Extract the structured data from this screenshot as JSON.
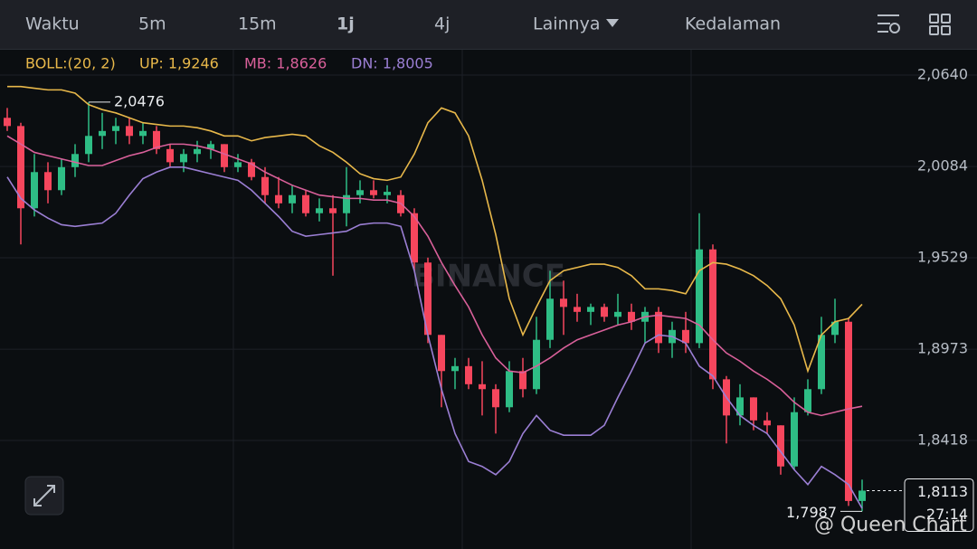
{
  "header": {
    "tabs": [
      "Waktu",
      "5m",
      "15m",
      "1j",
      "4j",
      "Lainnya",
      "Kedalaman"
    ],
    "active_index": 3
  },
  "indicator": {
    "name": "BOLL:(20, 2)",
    "up": "UP: 1,9246",
    "mb": "MB: 1,8626",
    "dn": "DN: 1,8005"
  },
  "watermark": "BINANCE",
  "overlay_text": "@ Queen Chart",
  "chart_data": {
    "type": "candlestick",
    "up_color": "#2ebd85",
    "down_color": "#f6465d",
    "open": [
      2.038,
      2.033,
      1.983,
      2.005,
      1.994,
      2.008,
      2.016,
      2.027,
      2.03,
      2.033,
      2.027,
      2.03,
      2.019,
      2.011,
      2.016,
      2.019,
      2.022,
      2.008,
      2.011,
      2.002,
      1.991,
      1.986,
      1.991,
      1.98,
      1.983,
      1.98,
      1.991,
      1.994,
      1.991,
      1.991,
      1.98,
      1.95,
      1.906,
      1.884,
      1.887,
      1.876,
      1.873,
      1.862,
      1.884,
      1.873,
      1.903,
      1.928,
      1.923,
      1.92,
      1.923,
      1.917,
      1.92,
      1.914,
      1.92,
      1.901,
      1.909,
      1.901,
      1.958,
      1.879,
      1.857,
      1.868,
      1.854,
      1.851,
      1.826,
      1.859,
      1.873,
      1.906,
      1.914,
      1.805
    ],
    "high": [
      2.044,
      2.035,
      2.016,
      2.011,
      2.013,
      2.022,
      2.0476,
      2.041,
      2.038,
      2.038,
      2.035,
      2.033,
      2.022,
      2.019,
      2.024,
      2.024,
      2.022,
      2.016,
      2.013,
      2.008,
      2.002,
      1.997,
      1.994,
      1.989,
      1.991,
      2.008,
      2.0,
      2.0,
      1.997,
      1.994,
      1.983,
      1.953,
      1.906,
      1.892,
      1.892,
      1.89,
      1.876,
      1.89,
      1.892,
      1.917,
      1.945,
      1.939,
      1.931,
      1.925,
      1.925,
      1.931,
      1.925,
      1.923,
      1.923,
      1.914,
      1.92,
      1.98,
      1.961,
      1.881,
      1.876,
      1.868,
      1.859,
      1.851,
      1.868,
      1.879,
      1.917,
      1.928,
      1.916,
      1.818
    ],
    "low": [
      2.03,
      1.961,
      1.978,
      1.986,
      1.991,
      2.002,
      2.011,
      2.019,
      2.022,
      2.022,
      2.022,
      2.016,
      2.008,
      2.005,
      2.011,
      2.013,
      2.005,
      2.005,
      2.0,
      1.986,
      1.983,
      1.98,
      1.978,
      1.975,
      1.942,
      1.972,
      1.986,
      1.989,
      1.986,
      1.978,
      1.945,
      1.901,
      1.862,
      1.873,
      1.873,
      1.857,
      1.846,
      1.859,
      1.868,
      1.87,
      1.898,
      1.906,
      1.914,
      1.912,
      1.914,
      1.912,
      1.909,
      1.901,
      1.895,
      1.892,
      1.895,
      1.898,
      1.873,
      1.84,
      1.851,
      1.848,
      1.846,
      1.821,
      1.824,
      1.857,
      1.87,
      1.901,
      1.802,
      1.7987
    ],
    "close": [
      2.033,
      1.983,
      2.005,
      1.994,
      2.008,
      2.016,
      2.027,
      2.03,
      2.033,
      2.027,
      2.03,
      2.019,
      2.011,
      2.016,
      2.019,
      2.022,
      2.008,
      2.011,
      2.002,
      1.991,
      1.986,
      1.991,
      1.98,
      1.983,
      1.98,
      1.991,
      1.994,
      1.991,
      1.993,
      1.98,
      1.95,
      1.906,
      1.884,
      1.887,
      1.876,
      1.873,
      1.862,
      1.884,
      1.873,
      1.903,
      1.928,
      1.923,
      1.92,
      1.923,
      1.917,
      1.92,
      1.914,
      1.92,
      1.901,
      1.909,
      1.901,
      1.958,
      1.879,
      1.857,
      1.868,
      1.854,
      1.851,
      1.826,
      1.859,
      1.873,
      1.906,
      1.914,
      1.805,
      1.8113
    ],
    "bands": {
      "upper": {
        "color": "#e8b84a",
        "values": [
          2.057,
          2.057,
          2.056,
          2.055,
          2.055,
          2.053,
          2.046,
          2.043,
          2.041,
          2.038,
          2.035,
          2.034,
          2.033,
          2.033,
          2.032,
          2.03,
          2.027,
          2.027,
          2.024,
          2.026,
          2.027,
          2.028,
          2.027,
          2.021,
          2.017,
          2.011,
          2.004,
          2.001,
          2.0,
          2.002,
          2.016,
          2.035,
          2.044,
          2.041,
          2.027,
          2.0,
          1.967,
          1.928,
          1.906,
          1.923,
          1.939,
          1.945,
          1.947,
          1.949,
          1.949,
          1.947,
          1.942,
          1.934,
          1.934,
          1.933,
          1.931,
          1.945,
          1.95,
          1.949,
          1.946,
          1.942,
          1.936,
          1.928,
          1.912,
          1.884,
          1.906,
          1.914,
          1.916,
          1.9246
        ]
      },
      "middle": {
        "color": "#d9609a",
        "values": [
          2.027,
          2.022,
          2.017,
          2.015,
          2.013,
          2.011,
          2.009,
          2.009,
          2.012,
          2.015,
          2.017,
          2.02,
          2.022,
          2.022,
          2.021,
          2.019,
          2.016,
          2.013,
          2.01,
          2.005,
          2.001,
          1.997,
          1.994,
          1.991,
          1.99,
          1.989,
          1.989,
          1.988,
          1.988,
          1.986,
          1.978,
          1.966,
          1.95,
          1.936,
          1.923,
          1.906,
          1.892,
          1.884,
          1.883,
          1.887,
          1.892,
          1.898,
          1.903,
          1.906,
          1.909,
          1.912,
          1.914,
          1.917,
          1.918,
          1.917,
          1.916,
          1.912,
          1.903,
          1.895,
          1.89,
          1.884,
          1.879,
          1.873,
          1.865,
          1.859,
          1.857,
          1.859,
          1.861,
          1.8626
        ]
      },
      "lower": {
        "color": "#9b7fd4",
        "values": [
          2.002,
          1.989,
          1.982,
          1.977,
          1.973,
          1.972,
          1.973,
          1.974,
          1.98,
          1.991,
          2.001,
          2.005,
          2.008,
          2.008,
          2.006,
          2.004,
          2.002,
          2.0,
          1.994,
          1.986,
          1.978,
          1.969,
          1.966,
          1.967,
          1.968,
          1.969,
          1.973,
          1.974,
          1.974,
          1.972,
          1.945,
          1.906,
          1.873,
          1.846,
          1.829,
          1.826,
          1.821,
          1.829,
          1.846,
          1.857,
          1.848,
          1.845,
          1.845,
          1.845,
          1.851,
          1.868,
          1.884,
          1.901,
          1.906,
          1.905,
          1.901,
          1.887,
          1.881,
          1.868,
          1.857,
          1.851,
          1.846,
          1.835,
          1.824,
          1.815,
          1.826,
          1.821,
          1.815,
          1.8005
        ]
      }
    },
    "ylim": [
      1.7758,
      2.0794
    ],
    "yticks": [
      {
        "value": 2.064,
        "label": "2,0640"
      },
      {
        "value": 2.0084,
        "label": "2,0084"
      },
      {
        "value": 1.9529,
        "label": "1,9529"
      },
      {
        "value": 1.8973,
        "label": "1,8973"
      },
      {
        "value": 1.8418,
        "label": "1,8418"
      }
    ],
    "grid": true,
    "high_marker": {
      "value": 2.0476,
      "label": "2,0476"
    },
    "low_marker": {
      "value": 1.7987,
      "label": "1,7987"
    },
    "last_price": {
      "value": 1.8113,
      "label": "1,8113"
    },
    "countdown": "27:14"
  }
}
